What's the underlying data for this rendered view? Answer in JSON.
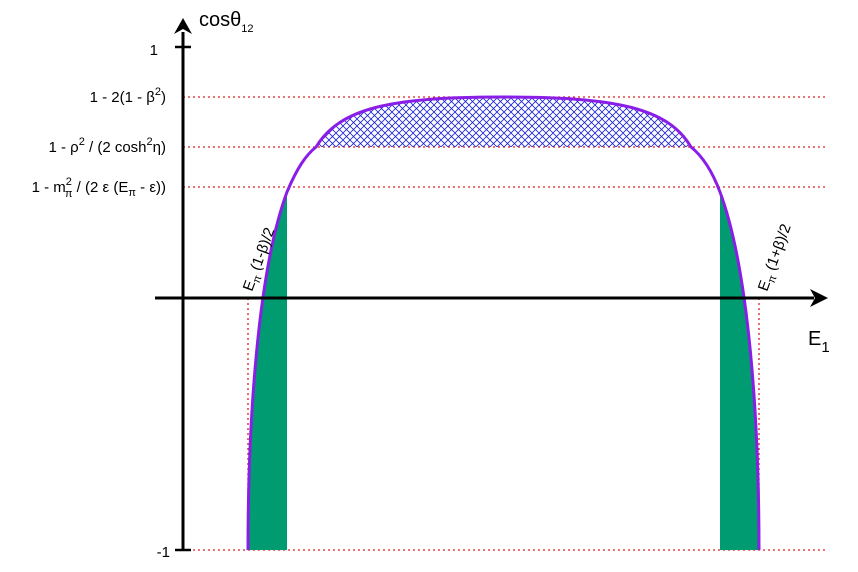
{
  "colors": {
    "curve": "#8a1ee6",
    "green_fill": "#009b70",
    "hatch": "#1a23d6",
    "guide": "#e02020",
    "axis": "#000000"
  },
  "y_axis": {
    "label_main": "cosθ",
    "label_sub": "12",
    "tick_top": "1",
    "tick_bottom": "-1"
  },
  "x_axis": {
    "label_main": "E",
    "label_sub": "1"
  },
  "levels": {
    "beta": {
      "p1": "1 - 2(1 - β",
      "sup": "2",
      "p2": ")"
    },
    "rho": {
      "p1": "1 - ρ",
      "sup1": "2",
      "p2": " / (2 cosh",
      "sup2": "2",
      "p3": "η)"
    },
    "mass": {
      "p1": "1 - m",
      "sup": "2",
      "sub": "π",
      "p2": " / (2 ε (E",
      "sub2": "π",
      "p3": " - ε))"
    }
  },
  "endpoints": {
    "left": {
      "p1": "E",
      "sub": "π",
      "p2": " (1-β)/2"
    },
    "right": {
      "p1": "E",
      "sub": "π",
      "p2": " (1+β)/2"
    }
  }
}
